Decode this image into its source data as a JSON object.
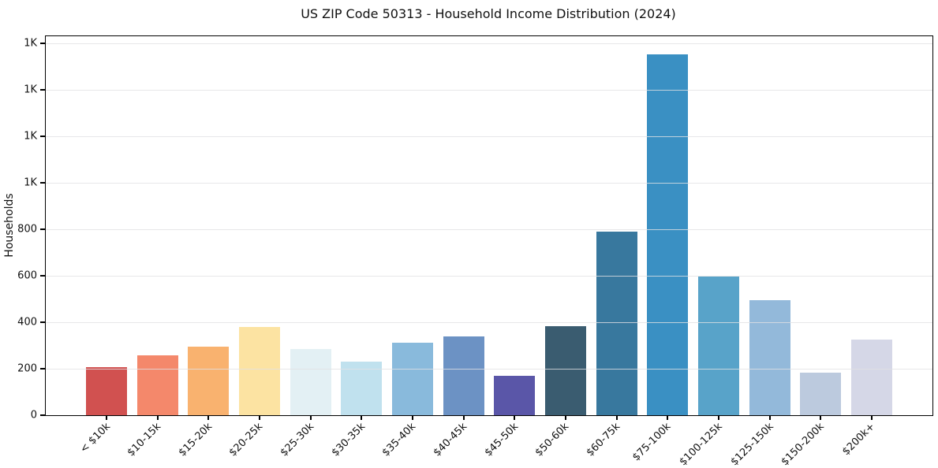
{
  "chart_data": {
    "type": "bar",
    "title": "US ZIP Code 50313 - Household Income Distribution (2024)",
    "xlabel": "",
    "ylabel": "Households",
    "categories": [
      "< $10k",
      "$10-15k",
      "$15-20k",
      "$20-25k",
      "$25-30k",
      "$30-35k",
      "$35-40k",
      "$40-45k",
      "$45-50k",
      "$50-60k",
      "$60-75k",
      "$75-100k",
      "$100-125k",
      "$125-150k",
      "$150-200k",
      "$200k+"
    ],
    "values": [
      208,
      258,
      296,
      379,
      284,
      231,
      313,
      339,
      171,
      382,
      788,
      1552,
      595,
      495,
      182,
      327
    ],
    "bar_colors": [
      "#d15150",
      "#f4886b",
      "#f9b26f",
      "#fce3a2",
      "#e3f0f4",
      "#c0e1ee",
      "#89badc",
      "#6c92c4",
      "#5a56a8",
      "#3a5c70",
      "#38789e",
      "#3a90c3",
      "#58a3c9",
      "#93b9da",
      "#bccade",
      "#d5d7e7"
    ],
    "ylim": [
      0,
      1630
    ],
    "yticks": [
      {
        "value": 0,
        "label": "0"
      },
      {
        "value": 200,
        "label": "200"
      },
      {
        "value": 400,
        "label": "400"
      },
      {
        "value": 600,
        "label": "600"
      },
      {
        "value": 800,
        "label": "800"
      },
      {
        "value": 1000,
        "label": "1K"
      },
      {
        "value": 1200,
        "label": "1K"
      },
      {
        "value": 1400,
        "label": "1K"
      },
      {
        "value": 1600,
        "label": "1K"
      }
    ],
    "x_tick_rotation": 45,
    "grid": "horizontal gridlines, light gray, drawn over bars",
    "legend": "none",
    "colors": {
      "background": "#ffffff",
      "spine": "#000000",
      "gridline": "#e1e1e4",
      "text": "#111111"
    }
  }
}
